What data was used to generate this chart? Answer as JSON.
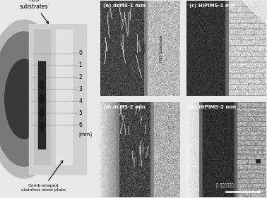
{
  "left_panel": {
    "label_hss": "HSS\nsubstrates",
    "label_comb": "Comb-shaped\nstainless steel plate",
    "tick_labels": [
      "0",
      "1",
      "2",
      "3",
      "4",
      "5",
      "6"
    ],
    "tick_unit": "[mm]"
  },
  "panel_labels": [
    "(b) dcMS-1 mm",
    "(c) HIPIMS-1 mm",
    "(d) dcMS-2 mm",
    "(e) HIPIMS-2 mm"
  ],
  "watermark": "真空装备专家",
  "fig_bg": "#e8e8e8"
}
